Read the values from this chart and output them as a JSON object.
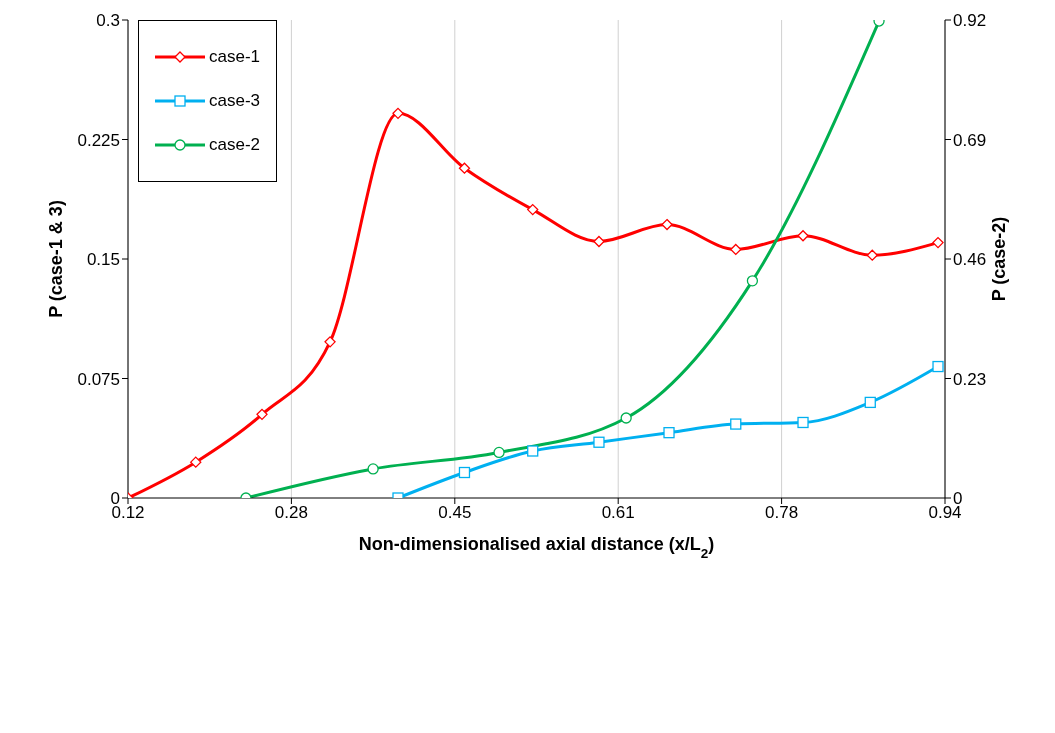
{
  "chart_data": {
    "type": "line",
    "xlabel": "Non-dimensionalised axial distance (x/L$_{2}$)",
    "ylabel": "P (case-1 & 3)",
    "y2label": "P (case-2)",
    "xlim": [
      0.12,
      0.94
    ],
    "xticks": [
      {
        "value": 0.12,
        "label": "0.12"
      },
      {
        "value": 0.284,
        "label": "0.28"
      },
      {
        "value": 0.448,
        "label": "0.45"
      },
      {
        "value": 0.612,
        "label": "0.61"
      },
      {
        "value": 0.776,
        "label": "0.78"
      },
      {
        "value": 0.94,
        "label": "0.94"
      }
    ],
    "ylim": [
      0,
      0.3
    ],
    "yticks": [
      0,
      0.075,
      0.15,
      0.225,
      0.3
    ],
    "y2lim": [
      0,
      0.92
    ],
    "y2ticks": [
      0,
      0.23,
      0.46,
      0.69,
      0.92
    ],
    "grid": "x",
    "legend": "top left",
    "line_style": "solid",
    "series": [
      {
        "name": "case-1",
        "color": "#ff0000",
        "marker": "diamond",
        "x": [
          0.12,
          0.188,
          0.2545,
          0.3228,
          0.391,
          0.4577,
          0.5262,
          0.5927,
          0.661,
          0.73,
          0.7975,
          0.867,
          0.933
        ],
        "values": [
          0,
          0.0225,
          0.0525,
          0.098,
          0.2414,
          0.207,
          0.181,
          0.161,
          0.1716,
          0.156,
          0.1646,
          0.1524,
          0.1603
        ]
      },
      {
        "name": "case-3",
        "color": "#00b0f0",
        "marker": "square",
        "x": [
          0.391,
          0.4577,
          0.5262,
          0.5927,
          0.663,
          0.73,
          0.7975,
          0.865,
          0.933
        ],
        "values": [
          0,
          0.016,
          0.0295,
          0.035,
          0.041,
          0.0464,
          0.0474,
          0.06,
          0.0825
        ]
      },
      {
        "name": "case-2",
        "color": "#00b050",
        "marker": "circle",
        "axis": "y2",
        "x": [
          0.2384,
          0.366,
          0.4924,
          0.62,
          0.7467,
          0.8738
        ],
        "values": [
          0,
          0.056,
          0.0877,
          0.154,
          0.418,
          0.918
        ]
      }
    ]
  }
}
